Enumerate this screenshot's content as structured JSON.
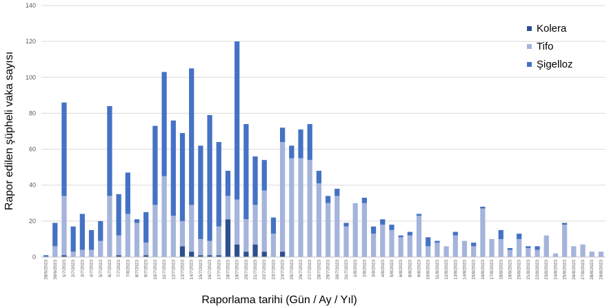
{
  "chart_data": {
    "type": "bar",
    "stacked": true,
    "title": "",
    "xlabel": "Raporlama tarihi (Gün / Ay / Yıl)",
    "ylabel": "Rapor edilen şüpheli vaka sayısı",
    "ylim": [
      0,
      140
    ],
    "yticks": [
      0,
      20,
      40,
      60,
      80,
      100,
      120,
      140
    ],
    "grid": true,
    "legend_position": "right",
    "categories": [
      "28/6/2023",
      "30/6/2023",
      "1/7/2023",
      "2/7/2023",
      "3/7/2023",
      "4/7/2023",
      "5/7/2023",
      "6/7/2023",
      "7/7/2023",
      "7/8/2023",
      "8/7/2023",
      "9/7/2023",
      "10/7/2023",
      "11/7/2023",
      "12/7/2023",
      "13/7/2023",
      "14/7/2023",
      "15/7/2023",
      "16/7/2023",
      "17/7/2023",
      "18/7/2023",
      "19/7/2023",
      "20/7/2023",
      "21/7/2023",
      "22/7/2023",
      "23/7/2023",
      "24/7/2023",
      "25/7/2023",
      "26/7/2023",
      "27/7/2023",
      "28/7/2023",
      "29/7/2023",
      "30/7/2023",
      "31/7/2023",
      "1/8/2023",
      "2/8/2023",
      "3/8/2023",
      "4/8/2023",
      "5/8/2023",
      "6/8/2023",
      "8/8/2023",
      "9/8/2023",
      "10/8/2023",
      "11/8/2023",
      "12/8/2023",
      "13/8/2023",
      "14/8/2023",
      "15/8/2023",
      "16/8/2023",
      "17/8/2023",
      "18/8/2023",
      "19/8/2023",
      "20/8/2023",
      "21/8/2023",
      "22/8/2023",
      "23/8/2023",
      "24/8/2023",
      "25/8/2023",
      "26/8/2023",
      "27/8/2023",
      "28/8/2023",
      "29/8/2023"
    ],
    "series": [
      {
        "name": "Kolera",
        "color": "#2e4f8f",
        "values": [
          0,
          0,
          1,
          0,
          0,
          0,
          0,
          0,
          1,
          0,
          0,
          1,
          0,
          0,
          0,
          6,
          3,
          1,
          1,
          1,
          21,
          7,
          3,
          7,
          3,
          0,
          3,
          0,
          0,
          0,
          0,
          0,
          0,
          0,
          0,
          0,
          0,
          0,
          0,
          0,
          0,
          0,
          0,
          0,
          0,
          0,
          0,
          0,
          0,
          0,
          0,
          0,
          0,
          0,
          0,
          0,
          0,
          0,
          0,
          0,
          0,
          0
        ]
      },
      {
        "name": "Tifo",
        "color": "#a5b4db",
        "values": [
          0,
          6,
          33,
          3,
          4,
          4,
          9,
          34,
          11,
          24,
          19,
          7,
          29,
          45,
          23,
          14,
          26,
          9,
          8,
          16,
          13,
          25,
          18,
          22,
          34,
          13,
          61,
          55,
          55,
          54,
          41,
          30,
          34,
          17,
          30,
          30,
          13,
          18,
          15,
          11,
          12,
          23,
          6,
          8,
          6,
          12,
          9,
          6,
          27,
          10,
          10,
          4,
          10,
          5,
          4,
          12,
          2,
          18,
          6,
          7,
          3,
          3
        ]
      },
      {
        "name": "Şigelloz",
        "color": "#4472c4",
        "values": [
          1,
          13,
          52,
          14,
          20,
          11,
          11,
          50,
          23,
          23,
          2,
          17,
          44,
          58,
          53,
          49,
          76,
          52,
          70,
          47,
          14,
          88,
          53,
          27,
          17,
          9,
          8,
          7,
          16,
          20,
          7,
          4,
          4,
          2,
          0,
          3,
          4,
          3,
          3,
          1,
          2,
          1,
          5,
          1,
          0,
          2,
          0,
          2,
          1,
          0,
          5,
          1,
          3,
          1,
          2,
          0,
          0,
          1,
          0,
          0,
          0,
          0
        ]
      }
    ]
  }
}
